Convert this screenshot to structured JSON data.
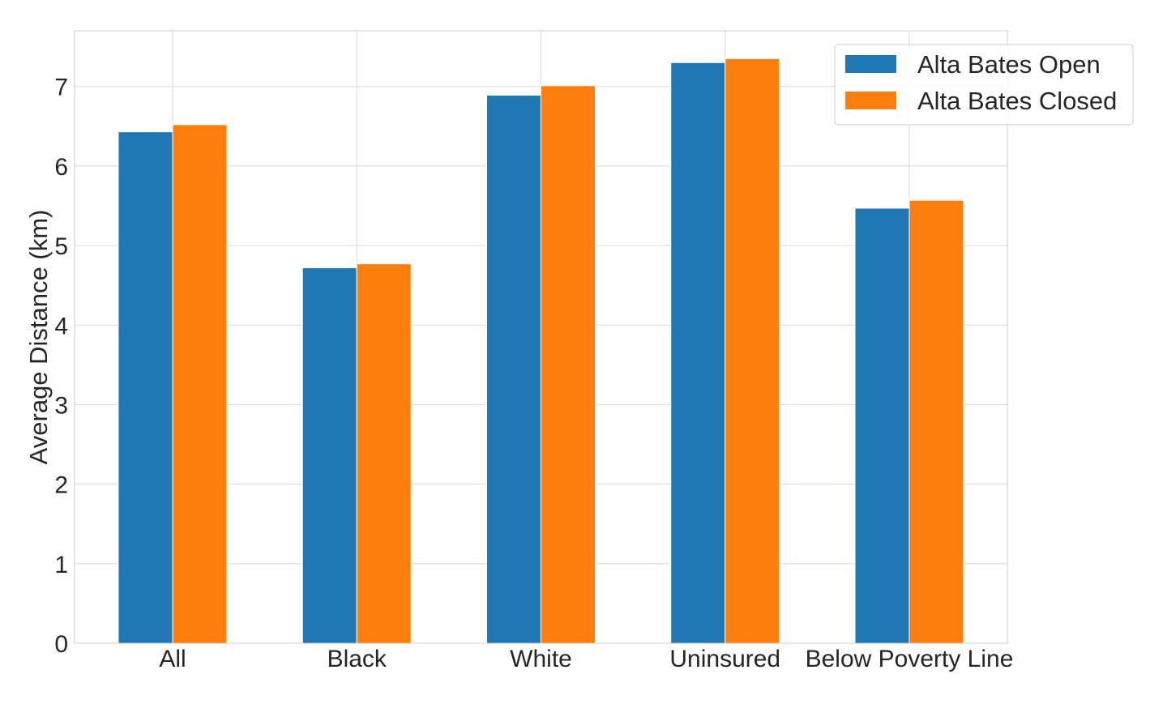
{
  "chart_data": {
    "type": "bar",
    "categories": [
      "All",
      "Black",
      "White",
      "Uninsured",
      "Below Poverty Line"
    ],
    "series": [
      {
        "name": "Alta Bates Open",
        "color": "#1f77b4",
        "values": [
          6.43,
          4.72,
          6.89,
          7.3,
          5.47
        ]
      },
      {
        "name": "Alta Bates Closed",
        "color": "#ff7f0e",
        "values": [
          6.52,
          4.77,
          7.01,
          7.35,
          5.57
        ]
      }
    ],
    "title": "",
    "xlabel": "",
    "ylabel": "Average Distance (km)",
    "ylim": [
      0,
      7.7
    ],
    "yticks": [
      0,
      1,
      2,
      3,
      4,
      5,
      6,
      7
    ],
    "grid": true,
    "legend_position": "top-right"
  }
}
